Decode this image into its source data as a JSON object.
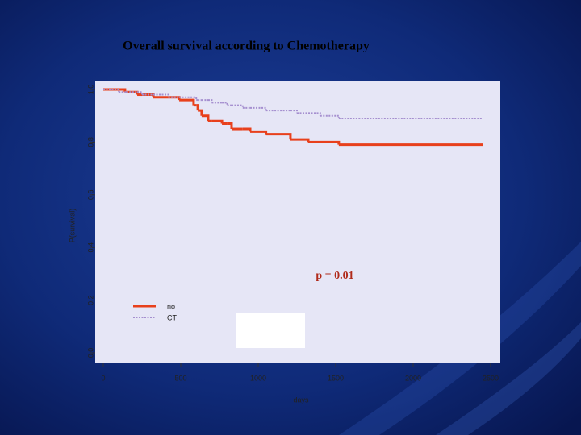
{
  "chart_data": {
    "type": "line",
    "step": true,
    "title": "Overall survival according to Chemotherapy",
    "xlabel": "days",
    "ylabel": "P(survival)",
    "annotation": "p = 0.01",
    "x": [
      0,
      100,
      140,
      150,
      219,
      250,
      323,
      420,
      490,
      583,
      600,
      610,
      635,
      677,
      700,
      766,
      800,
      828,
      900,
      948,
      1050,
      1208,
      1250,
      1323,
      1400,
      1520,
      2450
    ],
    "series": [
      {
        "name": "no",
        "color": "#e8401c",
        "dashed": false,
        "values": [
          1.0,
          1.0,
          0.99,
          0.99,
          0.98,
          0.98,
          0.97,
          0.97,
          0.96,
          0.94,
          0.94,
          0.92,
          0.9,
          0.88,
          0.88,
          0.87,
          0.87,
          0.85,
          0.85,
          0.84,
          0.83,
          0.81,
          0.81,
          0.8,
          0.8,
          0.79,
          0.79
        ]
      },
      {
        "name": "CT",
        "color": "#a58fcf",
        "dashed": true,
        "values": [
          1.0,
          0.99,
          0.99,
          0.99,
          0.99,
          0.98,
          0.98,
          0.97,
          0.97,
          0.97,
          0.96,
          0.96,
          0.96,
          0.96,
          0.95,
          0.95,
          0.94,
          0.94,
          0.93,
          0.93,
          0.92,
          0.92,
          0.91,
          0.91,
          0.9,
          0.89,
          0.89
        ]
      }
    ],
    "xlim": [
      0,
      2500
    ],
    "xticks": [
      0,
      500,
      1000,
      1500,
      2000,
      2500
    ],
    "ylim": [
      0,
      1
    ],
    "yticks": [
      {
        "value": 0,
        "label": "0.0"
      },
      0.2,
      0.4,
      0.6,
      0.8,
      {
        "value": 1,
        "label": "1.0"
      }
    ],
    "grid": false
  }
}
